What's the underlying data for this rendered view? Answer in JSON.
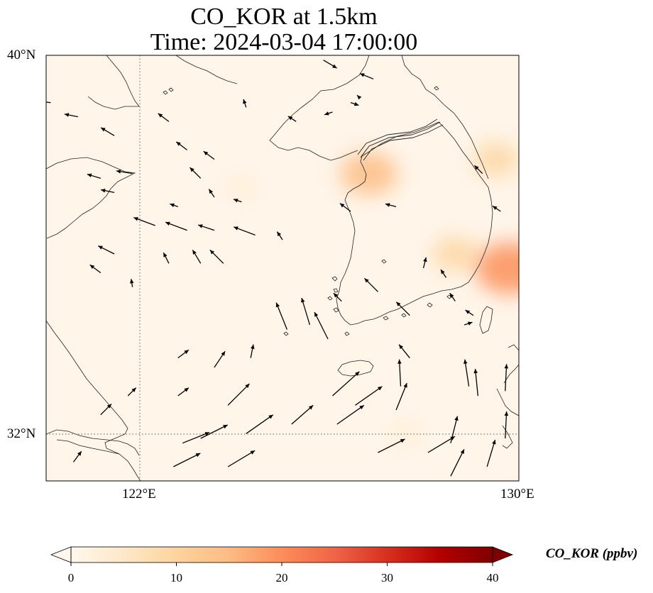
{
  "title": {
    "line1": "CO_KOR at 1.5km",
    "line2": "Time: 2024-03-04 17:00:00"
  },
  "map": {
    "extent": {
      "lon_min": 119.6,
      "lon_max": 130.0,
      "lat_min": 31.0,
      "lat_max": 40.0
    },
    "gridlines": {
      "lons": [
        122
      ],
      "lats": [
        32
      ],
      "style": "dotted"
    }
  },
  "axes": {
    "lat_ticks": [
      {
        "value": 40,
        "label": "40°N"
      },
      {
        "value": 32,
        "label": "32°N"
      }
    ],
    "lon_ticks": [
      {
        "value": 122,
        "label": "122°E"
      },
      {
        "value": 130,
        "label": "130°E"
      }
    ]
  },
  "colorbar": {
    "label": "CO_KOR (ppbv)",
    "min": 0,
    "max": 40,
    "extend": "both",
    "colormap": "OrRd",
    "ticks": [
      "0",
      "10",
      "20",
      "30",
      "40"
    ],
    "colors": [
      "#fff7ec",
      "#fee8c8",
      "#fdd49e",
      "#fdbb84",
      "#fc8d59",
      "#ef6548",
      "#d7301f",
      "#b30000",
      "#7f0000"
    ]
  },
  "field": {
    "variable": "CO_KOR",
    "units": "ppbv",
    "hotspots": [
      {
        "lon": 126.7,
        "lat": 37.5,
        "value": 14
      },
      {
        "lon": 129.8,
        "lat": 35.5,
        "value": 19
      },
      {
        "lon": 129.5,
        "lat": 37.8,
        "value": 9
      },
      {
        "lon": 128.6,
        "lat": 35.8,
        "value": 9
      },
      {
        "lon": 123.9,
        "lat": 37.2,
        "value": 3
      },
      {
        "lon": 127.5,
        "lat": 32.0,
        "value": 3
      }
    ]
  },
  "wind_vectors": [
    {
      "lon": 125.4,
      "lat": 34.3,
      "u": -0.3,
      "v": 1.0
    },
    {
      "lon": 125.8,
      "lat": 34.0,
      "u": -0.5,
      "v": 1.0
    },
    {
      "lon": 124.9,
      "lat": 34.2,
      "u": -0.4,
      "v": 1.0
    },
    {
      "lon": 127.4,
      "lat": 33.0,
      "u": -0.05,
      "v": 1.0
    },
    {
      "lon": 127.6,
      "lat": 33.6,
      "u": -0.4,
      "v": 0.5
    },
    {
      "lon": 129.1,
      "lat": 32.8,
      "u": -0.1,
      "v": 1.0
    },
    {
      "lon": 128.9,
      "lat": 33.0,
      "u": -0.15,
      "v": 1.0
    },
    {
      "lon": 129.7,
      "lat": 32.9,
      "u": 0.05,
      "v": 1.0
    },
    {
      "lon": 129.7,
      "lat": 31.9,
      "u": 0.05,
      "v": 1.0
    },
    {
      "lon": 128.5,
      "lat": 31.8,
      "u": 0.25,
      "v": 1.0
    },
    {
      "lon": 129.3,
      "lat": 31.3,
      "u": 0.3,
      "v": 1.0
    },
    {
      "lon": 127.3,
      "lat": 32.5,
      "u": 0.4,
      "v": 1.0
    },
    {
      "lon": 126.9,
      "lat": 31.6,
      "u": 1.0,
      "v": 0.5
    },
    {
      "lon": 128.0,
      "lat": 31.6,
      "u": 1.0,
      "v": 0.6
    },
    {
      "lon": 128.5,
      "lat": 31.1,
      "u": 0.5,
      "v": 1.0
    },
    {
      "lon": 126.4,
      "lat": 32.6,
      "u": 1.0,
      "v": 0.7
    },
    {
      "lon": 126.0,
      "lat": 32.2,
      "u": 1.0,
      "v": 0.7
    },
    {
      "lon": 125.0,
      "lat": 32.2,
      "u": 0.8,
      "v": 0.7
    },
    {
      "lon": 125.9,
      "lat": 32.8,
      "u": 1.0,
      "v": 0.9
    },
    {
      "lon": 124.0,
      "lat": 32.0,
      "u": 1.0,
      "v": 0.7
    },
    {
      "lon": 123.0,
      "lat": 31.9,
      "u": 1.0,
      "v": 0.5
    },
    {
      "lon": 122.6,
      "lat": 31.8,
      "u": 1.0,
      "v": 0.4
    },
    {
      "lon": 122.4,
      "lat": 31.3,
      "u": 1.0,
      "v": 0.5
    },
    {
      "lon": 123.6,
      "lat": 31.3,
      "u": 1.0,
      "v": 0.6
    },
    {
      "lon": 123.6,
      "lat": 32.6,
      "u": 0.8,
      "v": 0.8
    },
    {
      "lon": 123.3,
      "lat": 33.4,
      "u": 0.4,
      "v": 0.6
    },
    {
      "lon": 122.5,
      "lat": 32.8,
      "u": 0.4,
      "v": 0.3
    },
    {
      "lon": 121.4,
      "lat": 32.8,
      "u": 0.3,
      "v": 0.3
    },
    {
      "lon": 120.8,
      "lat": 32.4,
      "u": 0.4,
      "v": 0.4
    },
    {
      "lon": 120.2,
      "lat": 31.4,
      "u": 0.3,
      "v": 0.4
    },
    {
      "lon": 122.5,
      "lat": 33.6,
      "u": 0.4,
      "v": 0.3
    },
    {
      "lon": 124.1,
      "lat": 33.6,
      "u": 0.1,
      "v": 0.5
    },
    {
      "lon": 124.8,
      "lat": 36.1,
      "u": -0.2,
      "v": 0.3
    },
    {
      "lon": 123.0,
      "lat": 35.6,
      "u": -0.3,
      "v": 0.5
    },
    {
      "lon": 123.5,
      "lat": 35.6,
      "u": -0.5,
      "v": 0.5
    },
    {
      "lon": 122.3,
      "lat": 35.6,
      "u": -0.2,
      "v": 0.4
    },
    {
      "lon": 121.5,
      "lat": 35.1,
      "u": -0.05,
      "v": 0.3
    },
    {
      "lon": 120.8,
      "lat": 35.4,
      "u": -0.4,
      "v": 0.3
    },
    {
      "lon": 121.1,
      "lat": 35.8,
      "u": -0.6,
      "v": 0.3
    },
    {
      "lon": 122.0,
      "lat": 36.4,
      "u": -0.8,
      "v": 0.3
    },
    {
      "lon": 122.7,
      "lat": 36.3,
      "u": -0.8,
      "v": 0.3
    },
    {
      "lon": 123.3,
      "lat": 36.3,
      "u": -0.6,
      "v": 0.2
    },
    {
      "lon": 124.2,
      "lat": 36.2,
      "u": -0.8,
      "v": 0.3
    },
    {
      "lon": 121.1,
      "lat": 37.1,
      "u": -0.5,
      "v": 0.1
    },
    {
      "lon": 120.8,
      "lat": 37.4,
      "u": -0.5,
      "v": 0.15
    },
    {
      "lon": 121.5,
      "lat": 37.5,
      "u": -0.6,
      "v": 0.1
    },
    {
      "lon": 122.5,
      "lat": 36.8,
      "u": -0.3,
      "v": 0.1
    },
    {
      "lon": 123.0,
      "lat": 37.4,
      "u": -0.4,
      "v": 0.4
    },
    {
      "lon": 123.3,
      "lat": 37.0,
      "u": -0.2,
      "v": 0.3
    },
    {
      "lon": 123.3,
      "lat": 37.8,
      "u": -0.4,
      "v": 0.3
    },
    {
      "lon": 122.7,
      "lat": 38.0,
      "u": -0.4,
      "v": 0.3
    },
    {
      "lon": 122.3,
      "lat": 38.6,
      "u": -0.4,
      "v": 0.3
    },
    {
      "lon": 120.3,
      "lat": 38.7,
      "u": -0.5,
      "v": 0.1
    },
    {
      "lon": 121.1,
      "lat": 38.3,
      "u": -0.5,
      "v": 0.3
    },
    {
      "lon": 123.9,
      "lat": 36.9,
      "u": -0.3,
      "v": 0.1
    },
    {
      "lon": 124.0,
      "lat": 38.9,
      "u": -0.1,
      "v": 0.3
    },
    {
      "lon": 125.1,
      "lat": 38.6,
      "u": -0.3,
      "v": 0.2
    },
    {
      "lon": 126.8,
      "lat": 39.5,
      "u": -0.5,
      "v": 0.2
    },
    {
      "lon": 126.3,
      "lat": 39.0,
      "u": 0.3,
      "v": -0.1
    },
    {
      "lon": 126.5,
      "lat": 39.1,
      "u": -0.1,
      "v": 0.1
    },
    {
      "lon": 125.7,
      "lat": 39.9,
      "u": 0.5,
      "v": -0.3
    },
    {
      "lon": 127.3,
      "lat": 36.8,
      "u": -0.4,
      "v": 0.1
    },
    {
      "lon": 126.9,
      "lat": 35.0,
      "u": -0.5,
      "v": 0.5
    },
    {
      "lon": 127.6,
      "lat": 34.5,
      "u": -0.5,
      "v": 0.5
    },
    {
      "lon": 127.9,
      "lat": 35.5,
      "u": 0.1,
      "v": 0.4
    },
    {
      "lon": 128.4,
      "lat": 35.3,
      "u": -0.2,
      "v": 0.3
    },
    {
      "lon": 128.6,
      "lat": 34.8,
      "u": -0.2,
      "v": 0.3
    },
    {
      "lon": 129.0,
      "lat": 34.5,
      "u": -0.3,
      "v": 0.2
    },
    {
      "lon": 128.8,
      "lat": 34.3,
      "u": 0.3,
      "v": 0.1
    },
    {
      "lon": 126.1,
      "lat": 34.8,
      "u": -0.3,
      "v": 0.3
    },
    {
      "lon": 129.2,
      "lat": 37.5,
      "u": -0.3,
      "v": 0.3
    },
    {
      "lon": 129.6,
      "lat": 36.7,
      "u": -0.3,
      "v": 0.2
    },
    {
      "lon": 126.3,
      "lat": 36.7,
      "u": -0.4,
      "v": 0.3
    },
    {
      "lon": 125.9,
      "lat": 38.8,
      "u": -0.3,
      "v": -0.1
    },
    {
      "lon": 119.7,
      "lat": 39.0,
      "u": -0.5,
      "v": 0.05
    }
  ]
}
